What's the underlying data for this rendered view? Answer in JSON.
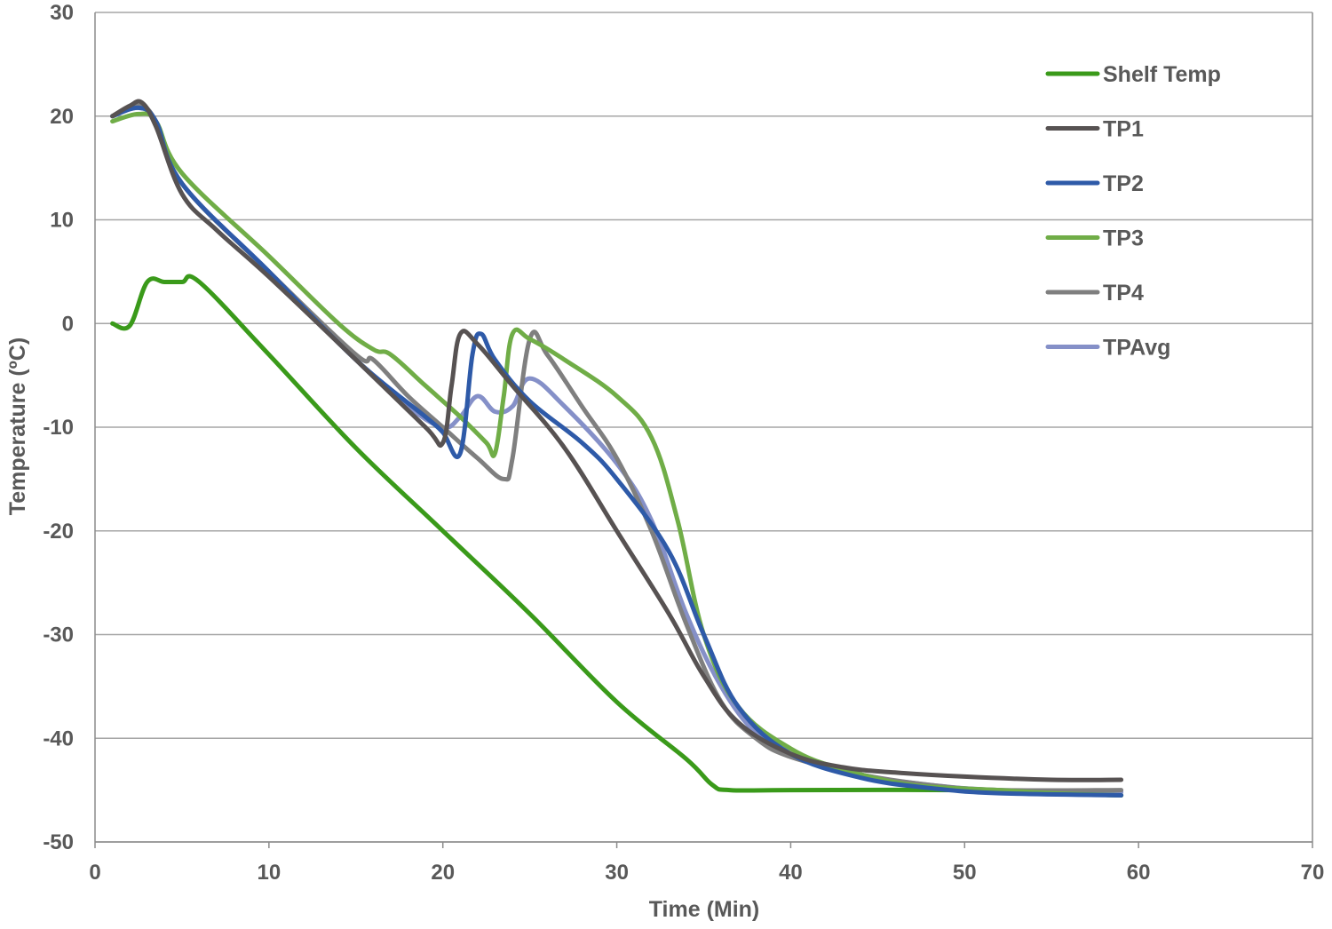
{
  "chart_data": {
    "type": "line",
    "title": "",
    "xlabel": "Time (Min)",
    "ylabel": "Temperature (ºC)",
    "xlim": [
      0,
      70
    ],
    "ylim": [
      -50,
      30
    ],
    "x_ticks": [
      0,
      10,
      20,
      30,
      40,
      50,
      60,
      70
    ],
    "y_ticks": [
      -50,
      -40,
      -30,
      -20,
      -10,
      0,
      10,
      20,
      30
    ],
    "grid": "horizontal",
    "legend_position": "top-right",
    "series": [
      {
        "name": "Shelf Temp",
        "color": "#3a9a1a",
        "points": [
          [
            1,
            0
          ],
          [
            2,
            -0.2
          ],
          [
            3,
            4
          ],
          [
            4,
            4
          ],
          [
            5,
            4
          ],
          [
            6,
            4
          ],
          [
            10,
            -3
          ],
          [
            15,
            -12
          ],
          [
            20,
            -20
          ],
          [
            25,
            -28
          ],
          [
            30,
            -36.5
          ],
          [
            34,
            -42
          ],
          [
            35.5,
            -44.5
          ],
          [
            36.5,
            -45
          ],
          [
            40,
            -45
          ],
          [
            50,
            -45
          ],
          [
            55,
            -45.3
          ],
          [
            59,
            -45.5
          ]
        ]
      },
      {
        "name": "TP1",
        "color": "#575252",
        "points": [
          [
            1,
            20
          ],
          [
            2,
            21
          ],
          [
            2.7,
            21.3
          ],
          [
            3.5,
            19
          ],
          [
            5,
            12.5
          ],
          [
            7,
            9
          ],
          [
            10,
            4.5
          ],
          [
            15,
            -3.5
          ],
          [
            19,
            -10
          ],
          [
            20,
            -11.5
          ],
          [
            20.5,
            -6
          ],
          [
            21,
            -1
          ],
          [
            22,
            -2
          ],
          [
            24,
            -6
          ],
          [
            27,
            -12
          ],
          [
            30,
            -20
          ],
          [
            33,
            -28
          ],
          [
            35,
            -34
          ],
          [
            37,
            -38.5
          ],
          [
            40,
            -41.5
          ],
          [
            43,
            -42.8
          ],
          [
            46,
            -43.3
          ],
          [
            50,
            -43.7
          ],
          [
            55,
            -44
          ],
          [
            59,
            -44
          ]
        ]
      },
      {
        "name": "TP2",
        "color": "#2e5aa8",
        "points": [
          [
            1,
            20
          ],
          [
            2.5,
            20.8
          ],
          [
            3.5,
            19.5
          ],
          [
            5,
            13.5
          ],
          [
            10,
            5
          ],
          [
            15,
            -3.5
          ],
          [
            19,
            -9
          ],
          [
            20,
            -10.5
          ],
          [
            21,
            -12.5
          ],
          [
            21.7,
            -3
          ],
          [
            22.2,
            -1
          ],
          [
            23,
            -3.5
          ],
          [
            25,
            -7.5
          ],
          [
            28,
            -11.5
          ],
          [
            30,
            -15
          ],
          [
            33,
            -22
          ],
          [
            35,
            -30
          ],
          [
            37,
            -37
          ],
          [
            40,
            -41.5
          ],
          [
            44,
            -43.8
          ],
          [
            48,
            -44.8
          ],
          [
            52,
            -45.3
          ],
          [
            59,
            -45.5
          ]
        ]
      },
      {
        "name": "TP3",
        "color": "#70ad47",
        "points": [
          [
            1,
            19.5
          ],
          [
            2.5,
            20.2
          ],
          [
            3.5,
            19.5
          ],
          [
            5,
            14.5
          ],
          [
            10,
            6.5
          ],
          [
            14,
            0
          ],
          [
            16,
            -2.5
          ],
          [
            17,
            -3
          ],
          [
            19,
            -6
          ],
          [
            21,
            -9
          ],
          [
            22.5,
            -11.5
          ],
          [
            23,
            -12.5
          ],
          [
            23.5,
            -7
          ],
          [
            24,
            -1
          ],
          [
            25,
            -1.5
          ],
          [
            27,
            -3.5
          ],
          [
            30,
            -7
          ],
          [
            32,
            -11
          ],
          [
            33.5,
            -19
          ],
          [
            35,
            -30
          ],
          [
            37,
            -37
          ],
          [
            40,
            -41
          ],
          [
            43,
            -43
          ],
          [
            47,
            -44.5
          ],
          [
            52,
            -45
          ],
          [
            55,
            -45.3
          ],
          [
            59,
            -45.5
          ]
        ]
      },
      {
        "name": "TP4",
        "color": "#7f7f7f",
        "points": [
          [
            1,
            20
          ],
          [
            2.5,
            21
          ],
          [
            3.5,
            19.5
          ],
          [
            5,
            13.5
          ],
          [
            10,
            5
          ],
          [
            15,
            -3
          ],
          [
            16,
            -3.5
          ],
          [
            18,
            -7
          ],
          [
            20,
            -10
          ],
          [
            22,
            -13
          ],
          [
            23.5,
            -15
          ],
          [
            24,
            -13
          ],
          [
            25,
            -1.5
          ],
          [
            26,
            -3
          ],
          [
            28,
            -8
          ],
          [
            30,
            -13
          ],
          [
            32,
            -20
          ],
          [
            34,
            -29
          ],
          [
            36,
            -36.5
          ],
          [
            38,
            -40
          ],
          [
            40,
            -41.8
          ],
          [
            44,
            -43.5
          ],
          [
            48,
            -44.5
          ],
          [
            52,
            -45
          ],
          [
            59,
            -45
          ]
        ]
      },
      {
        "name": "TPAvg",
        "color": "#8590c8",
        "points": [
          [
            1,
            20
          ],
          [
            2.5,
            20.8
          ],
          [
            3.5,
            19.5
          ],
          [
            5,
            13.5
          ],
          [
            10,
            5
          ],
          [
            15,
            -3.5
          ],
          [
            18,
            -8
          ],
          [
            20,
            -10
          ],
          [
            21,
            -9
          ],
          [
            22,
            -7
          ],
          [
            23,
            -8.5
          ],
          [
            24,
            -8
          ],
          [
            25,
            -5.3
          ],
          [
            27,
            -8
          ],
          [
            30,
            -13.5
          ],
          [
            32,
            -19
          ],
          [
            34,
            -28
          ],
          [
            36,
            -35
          ],
          [
            38,
            -39.5
          ],
          [
            40,
            -41.5
          ],
          [
            44,
            -43.5
          ],
          [
            48,
            -44.5
          ],
          [
            52,
            -45
          ],
          [
            59,
            -45.2
          ]
        ]
      }
    ]
  }
}
